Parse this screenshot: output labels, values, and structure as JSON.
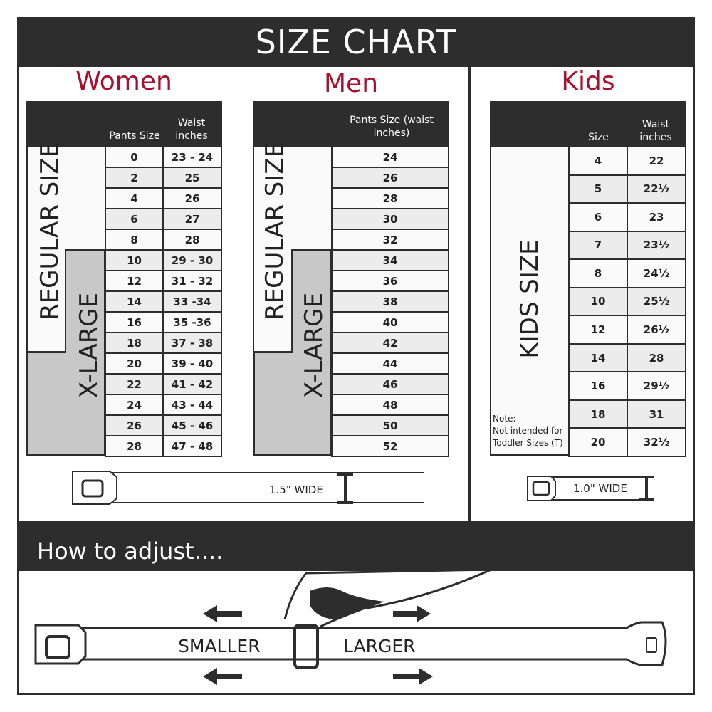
{
  "header": {
    "title": "SIZE CHART"
  },
  "colors": {
    "accent": "#a8112e",
    "dark": "#2d2d2d",
    "xlarge": "#c8c8c8"
  },
  "women": {
    "title": "Women",
    "col_pants": "Pants Size",
    "col_waist": "Waist inches",
    "regular_label": "REGULAR SIZE",
    "xlarge_label": "X-LARGE",
    "rows": [
      [
        "0",
        "23 - 24"
      ],
      [
        "2",
        "25"
      ],
      [
        "4",
        "26"
      ],
      [
        "6",
        "27"
      ],
      [
        "8",
        "28"
      ],
      [
        "10",
        "29 - 30"
      ],
      [
        "12",
        "31 - 32"
      ],
      [
        "14",
        "33 -34"
      ],
      [
        "16",
        "35 -36"
      ],
      [
        "18",
        "37 - 38"
      ],
      [
        "20",
        "39 - 40"
      ],
      [
        "22",
        "41 - 42"
      ],
      [
        "24",
        "43 - 44"
      ],
      [
        "26",
        "45 - 46"
      ],
      [
        "28",
        "47 - 48"
      ]
    ]
  },
  "men": {
    "title": "Men",
    "col_pants": "Pants Size (waist inches)",
    "regular_label": "REGULAR SIZE",
    "xlarge_label": "X-LARGE",
    "rows": [
      "24",
      "26",
      "28",
      "30",
      "32",
      "34",
      "36",
      "38",
      "40",
      "42",
      "44",
      "46",
      "48",
      "50",
      "52"
    ]
  },
  "kids": {
    "title": "Kids",
    "col_size": "Size",
    "col_waist": "Waist inches",
    "label": "KIDS SIZE",
    "note_title": "Note:",
    "note_text": "Not intended for Toddler Sizes (T)",
    "rows": [
      [
        "4",
        "22"
      ],
      [
        "5",
        "22½"
      ],
      [
        "6",
        "23"
      ],
      [
        "7",
        "23½"
      ],
      [
        "8",
        "24½"
      ],
      [
        "10",
        "25½"
      ],
      [
        "12",
        "26½"
      ],
      [
        "14",
        "28"
      ],
      [
        "16",
        "29½"
      ],
      [
        "18",
        "31"
      ],
      [
        "20",
        "32½"
      ]
    ]
  },
  "belts": {
    "adult_width": "1.5\" WIDE",
    "kids_width": "1.0\" WIDE"
  },
  "adjust": {
    "title": "How to adjust....",
    "smaller": "SMALLER",
    "larger": "LARGER"
  }
}
